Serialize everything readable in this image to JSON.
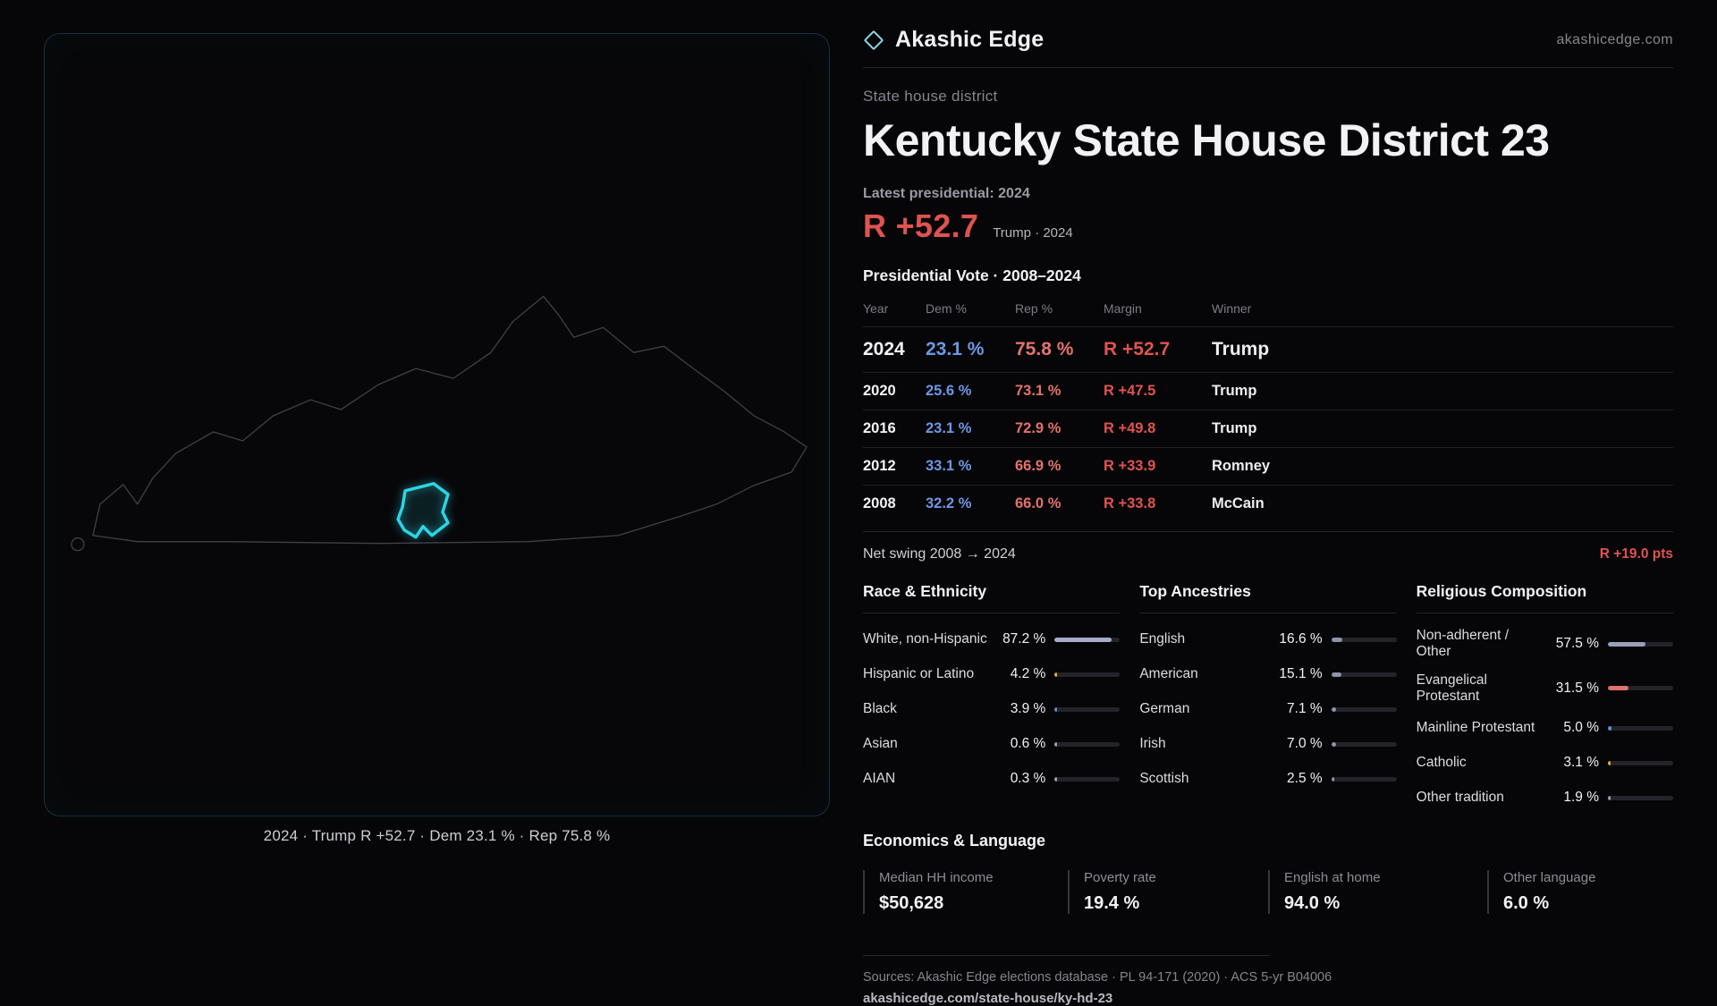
{
  "brand": {
    "name": "Akashic Edge",
    "domain": "akashicedge.com"
  },
  "map": {
    "caption": "2024 · Trump R +52.7 · Dem 23.1 % · Rep 75.8 %"
  },
  "header": {
    "kicker": "State house district",
    "title": "Kentucky State House District 23",
    "latest_label": "Latest presidential: 2024",
    "margin_big": "R +52.7",
    "margin_sub": "Trump · 2024"
  },
  "table": {
    "title": "Presidential Vote · 2008–2024",
    "columns": [
      "Year",
      "Dem %",
      "Rep %",
      "Margin",
      "Winner"
    ],
    "rows": [
      {
        "year": "2024",
        "dem": "23.1 %",
        "rep": "75.8 %",
        "margin": "R +52.7",
        "winner": "Trump"
      },
      {
        "year": "2020",
        "dem": "25.6 %",
        "rep": "73.1 %",
        "margin": "R +47.5",
        "winner": "Trump"
      },
      {
        "year": "2016",
        "dem": "23.1 %",
        "rep": "72.9 %",
        "margin": "R +49.8",
        "winner": "Trump"
      },
      {
        "year": "2012",
        "dem": "33.1 %",
        "rep": "66.9 %",
        "margin": "R +33.9",
        "winner": "Romney"
      },
      {
        "year": "2008",
        "dem": "32.2 %",
        "rep": "66.0 %",
        "margin": "R +33.8",
        "winner": "McCain"
      }
    ]
  },
  "swing": {
    "label": "Net swing 2008 → 2024",
    "value": "R +19.0 pts"
  },
  "demographics": {
    "race": {
      "title": "Race & Ethnicity",
      "items": [
        {
          "label": "White, non-Hispanic",
          "value": "87.2 %",
          "pct": 87.2,
          "color": "#a6abc8"
        },
        {
          "label": "Hispanic or Latino",
          "value": "4.2 %",
          "pct": 4.2,
          "color": "#d9b23c"
        },
        {
          "label": "Black",
          "value": "3.9 %",
          "pct": 3.9,
          "color": "#5b8fd9"
        },
        {
          "label": "Asian",
          "value": "0.6 %",
          "pct": 0.6,
          "color": "#9aa0b8"
        },
        {
          "label": "AIAN",
          "value": "0.3 %",
          "pct": 0.3,
          "color": "#9aa0b8"
        }
      ]
    },
    "ancestry": {
      "title": "Top Ancestries",
      "items": [
        {
          "label": "English",
          "value": "16.6 %",
          "pct": 16.6,
          "color": "#8d93a8"
        },
        {
          "label": "American",
          "value": "15.1 %",
          "pct": 15.1,
          "color": "#8d93a8"
        },
        {
          "label": "German",
          "value": "7.1 %",
          "pct": 7.1,
          "color": "#8d93a8"
        },
        {
          "label": "Irish",
          "value": "7.0 %",
          "pct": 7.0,
          "color": "#8d93a8"
        },
        {
          "label": "Scottish",
          "value": "2.5 %",
          "pct": 2.5,
          "color": "#8d93a8"
        }
      ]
    },
    "religion": {
      "title": "Religious Composition",
      "items": [
        {
          "label": "Non-adherent / Other",
          "value": "57.5 %",
          "pct": 57.5,
          "color": "#9aa0b8"
        },
        {
          "label": "Evangelical Protestant",
          "value": "31.5 %",
          "pct": 31.5,
          "color": "#e0716c"
        },
        {
          "label": "Mainline Protestant",
          "value": "5.0 %",
          "pct": 5.0,
          "color": "#5b8fd9"
        },
        {
          "label": "Catholic",
          "value": "3.1 %",
          "pct": 3.1,
          "color": "#d9b23c"
        },
        {
          "label": "Other tradition",
          "value": "1.9 %",
          "pct": 1.9,
          "color": "#9aa0b8"
        }
      ]
    }
  },
  "economics": {
    "title": "Economics & Language",
    "stats": [
      {
        "label": "Median HH income",
        "value": "$50,628"
      },
      {
        "label": "Poverty rate",
        "value": "19.4 %"
      },
      {
        "label": "English at home",
        "value": "94.0 %"
      },
      {
        "label": "Other language",
        "value": "6.0 %"
      }
    ]
  },
  "footer": {
    "sources": "Sources: Akashic Edge elections database · PL 94-171 (2020) · ACS 5-yr B04006",
    "url": "akashicedge.com/state-house/ky-hd-23"
  },
  "colors": {
    "accent": "#2dd4e4",
    "rep": "#e2736c",
    "dem": "#6b98e2",
    "margin_red": "#df5350"
  }
}
